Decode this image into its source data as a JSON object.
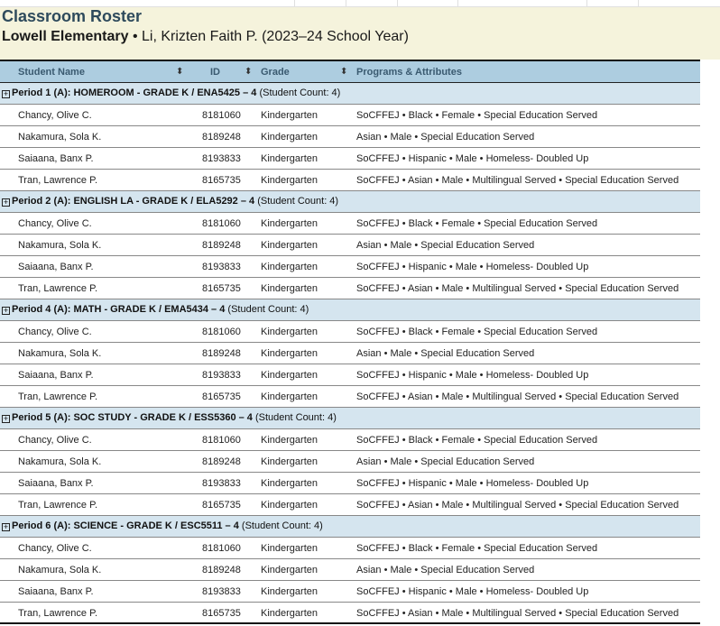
{
  "header": {
    "title": "Classroom Roster",
    "school": "Lowell Elementary",
    "teacher": "• Li, Krizten Faith P. (2023–24 School Year)"
  },
  "columns": {
    "name": "Student Name",
    "id": "ID",
    "grade": "Grade",
    "programs": "Programs & Attributes"
  },
  "groups": [
    {
      "title": "Period 1 (A): HOMEROOM - GRADE K  / ENA5425 – 4",
      "count": "(Student Count: 4)"
    },
    {
      "title": "Period 2 (A): ENGLISH LA - GRADE K  / ELA5292 – 4",
      "count": "(Student Count: 4)"
    },
    {
      "title": "Period 4 (A): MATH - GRADE K  / EMA5434 – 4",
      "count": "(Student Count: 4)"
    },
    {
      "title": "Period 5 (A): SOC STUDY - GRADE K  / ESS5360 – 4",
      "count": "(Student Count: 4)"
    },
    {
      "title": "Period 6 (A): SCIENCE - GRADE K  / ESC5511 – 4",
      "count": "(Student Count: 4)"
    }
  ],
  "students": [
    {
      "name": "Chancy, Olive C.",
      "id": "8181060",
      "grade": "Kindergarten",
      "programs": "SoCFFEJ • Black • Female • Special Education Served"
    },
    {
      "name": "Nakamura, Sola K.",
      "id": "8189248",
      "grade": "Kindergarten",
      "programs": "Asian • Male • Special Education Served"
    },
    {
      "name": "Saiaana, Banx P.",
      "id": "8193833",
      "grade": "Kindergarten",
      "programs": "SoCFFEJ • Hispanic • Male • Homeless- Doubled Up"
    },
    {
      "name": "Tran, Lawrence P.",
      "id": "8165735",
      "grade": "Kindergarten",
      "programs": "SoCFFEJ • Asian • Male • Multilingual Served • Special Education Served"
    }
  ],
  "colors": {
    "banner": "#f5f3dc",
    "header": "#adcde0",
    "group": "#d5e5ef"
  }
}
